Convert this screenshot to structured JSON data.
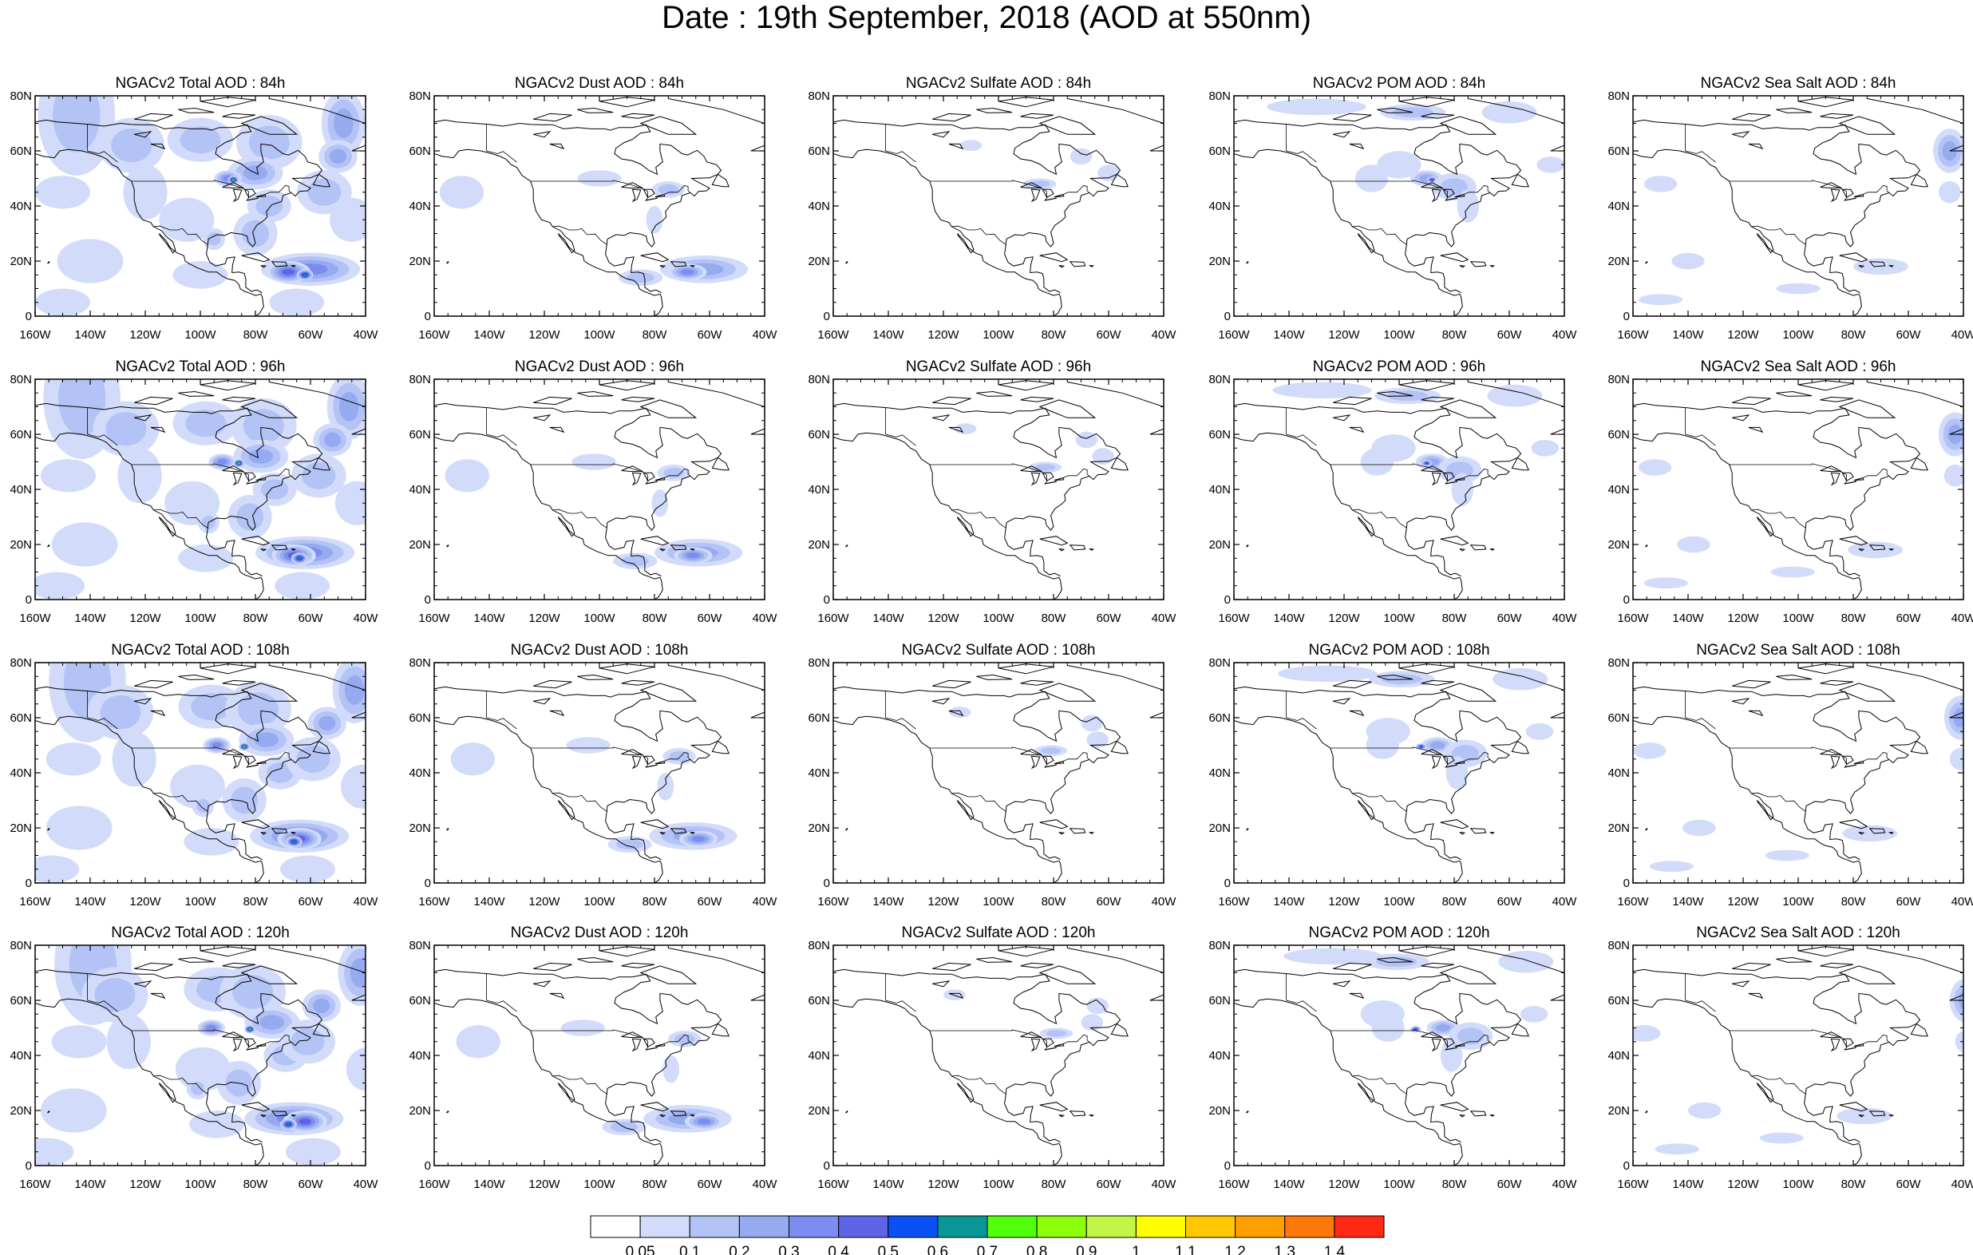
{
  "title": "Date : 19th September, 2018 (AOD at 550nm)",
  "panel_titles": [
    [
      "NGACv2 Total AOD : 84h",
      "NGACv2 Dust AOD : 84h",
      "NGACv2 Sulfate AOD : 84h",
      "NGACv2 POM AOD : 84h",
      "NGACv2 Sea Salt AOD : 84h"
    ],
    [
      "NGACv2 Total AOD : 96h",
      "NGACv2 Dust AOD : 96h",
      "NGACv2 Sulfate AOD : 96h",
      "NGACv2 POM AOD : 96h",
      "NGACv2 Sea Salt AOD : 96h"
    ],
    [
      "NGACv2 Total AOD : 108h",
      "NGACv2 Dust AOD : 108h",
      "NGACv2 Sulfate AOD : 108h",
      "NGACv2 POM AOD : 108h",
      "NGACv2 Sea Salt AOD : 108h"
    ],
    [
      "NGACv2 Total AOD : 120h",
      "NGACv2 Dust AOD : 120h",
      "NGACv2 Sulfate AOD : 120h",
      "NGACv2 POM AOD : 120h",
      "NGACv2 Sea Salt  AOD : 120h"
    ]
  ],
  "lat_ticks": [
    "80N",
    "60N",
    "40N",
    "20N",
    "0"
  ],
  "lon_ticks": [
    "160W",
    "140W",
    "120W",
    "100W",
    "80W",
    "60W",
    "40W"
  ],
  "colorbar": {
    "colors": [
      "#ffffff",
      "#d2dcfa",
      "#b4c3f5",
      "#96aaf0",
      "#7d8cf0",
      "#5f64e6",
      "#0a50f5",
      "#0a9696",
      "#50ff0a",
      "#8cff0a",
      "#c3f546",
      "#ffff00",
      "#ffc800",
      "#ffa000",
      "#ff780a",
      "#ff2814"
    ],
    "labels": [
      "0.05",
      "0.1",
      "0.2",
      "0.3",
      "0.4",
      "0.5",
      "0.6",
      "0.7",
      "0.8",
      "0.9",
      "1",
      "1.1",
      "1.2",
      "1.3",
      "1.4"
    ]
  }
}
